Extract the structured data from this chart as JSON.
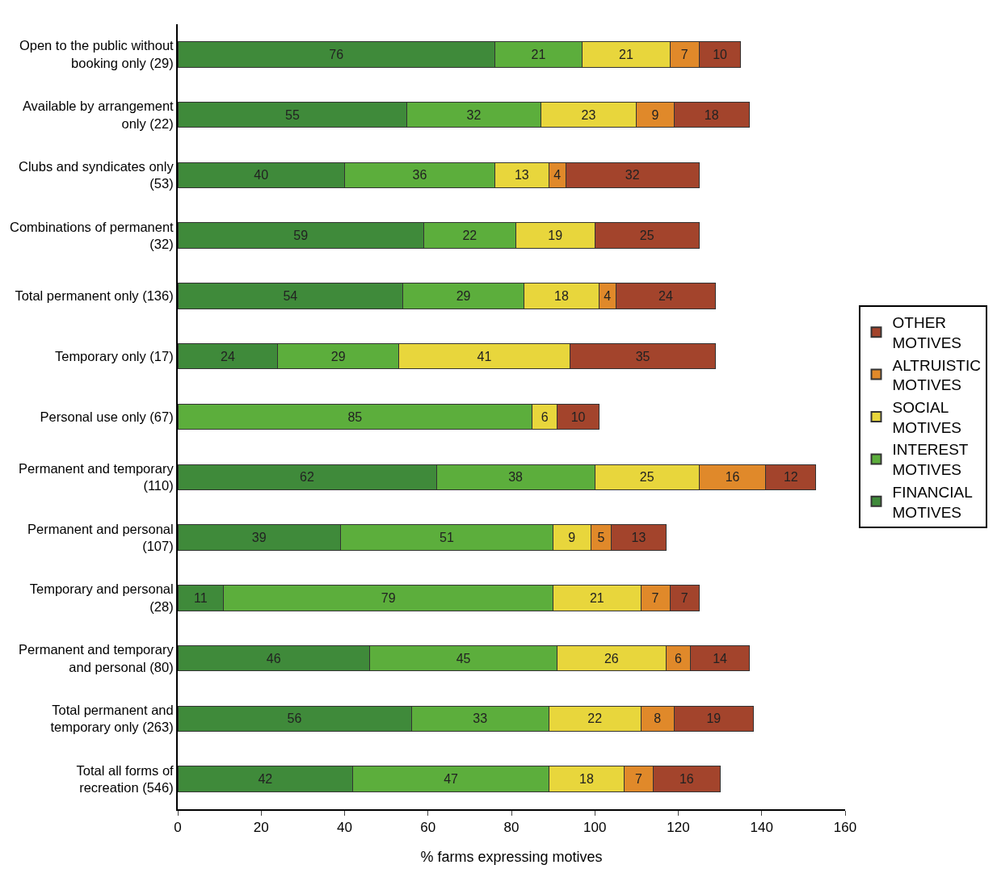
{
  "chart_data": {
    "type": "bar",
    "orientation": "horizontal",
    "stacked": true,
    "data_labels": true,
    "xlabel": "% farms expressing motives",
    "xlim": [
      0,
      160
    ],
    "xticks": [
      0,
      20,
      40,
      60,
      80,
      100,
      120,
      140,
      160
    ],
    "grid": false,
    "legend": "right",
    "categories": [
      "Open to the public without booking only (29)",
      "Available by arrangement only (22)",
      "Clubs and syndicates only (53)",
      "Combinations of permanent (32)",
      "Total permanent only (136)",
      "Temporary only (17)",
      "Personal use only (67)",
      "Permanent and temporary (110)",
      "Permanent and personal (107)",
      "Temporary and personal (28)",
      "Permanent and temporary and personal (80)",
      "Total permanent and temporary only (263)",
      "Total all forms of recreation (546)"
    ],
    "series": [
      {
        "name": "FINANCIAL MOTIVES",
        "color": "#3f8a3a",
        "values": [
          76,
          55,
          40,
          59,
          54,
          24,
          null,
          62,
          39,
          11,
          46,
          56,
          42
        ]
      },
      {
        "name": "INTEREST MOTIVES",
        "color": "#5cae3c",
        "values": [
          21,
          32,
          36,
          22,
          29,
          29,
          85,
          38,
          51,
          79,
          45,
          33,
          47
        ]
      },
      {
        "name": "SOCIAL MOTIVES",
        "color": "#e8d63c",
        "values": [
          21,
          23,
          13,
          19,
          18,
          41,
          6,
          25,
          9,
          21,
          26,
          22,
          18
        ]
      },
      {
        "name": "ALTRUISTIC MOTIVES",
        "color": "#e0892a",
        "values": [
          7,
          9,
          4,
          null,
          4,
          null,
          null,
          16,
          5,
          7,
          6,
          8,
          7
        ]
      },
      {
        "name": "OTHER MOTIVES",
        "color": "#a3442c",
        "values": [
          10,
          18,
          32,
          25,
          24,
          35,
          10,
          12,
          13,
          7,
          14,
          19,
          16
        ]
      }
    ]
  }
}
